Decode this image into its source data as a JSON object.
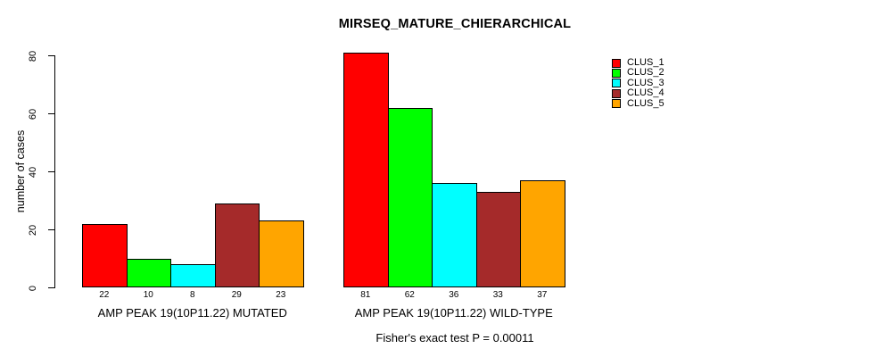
{
  "chart_data": {
    "type": "bar",
    "title": "MIRSEQ_MATURE_CHIERARCHICAL",
    "ylabel": "number of cases",
    "xlabel": "",
    "ylim": [
      0,
      80
    ],
    "yticks": [
      0,
      20,
      40,
      60,
      80
    ],
    "grid": false,
    "legend_position": "top-right",
    "clusters": [
      {
        "name": "CLUS_1",
        "color": "#FF0000"
      },
      {
        "name": "CLUS_2",
        "color": "#00FF00"
      },
      {
        "name": "CLUS_3",
        "color": "#00FFFF"
      },
      {
        "name": "CLUS_4",
        "color": "#A52A2A"
      },
      {
        "name": "CLUS_5",
        "color": "#FFA500"
      }
    ],
    "groups": [
      {
        "label": "AMP PEAK 19(10P11.22) MUTATED",
        "values": [
          22,
          10,
          8,
          29,
          23
        ]
      },
      {
        "label": "AMP PEAK 19(10P11.22) WILD-TYPE",
        "values": [
          81,
          62,
          36,
          33,
          37
        ]
      }
    ],
    "annotation": "Fisher's exact test P = 0.00011"
  }
}
